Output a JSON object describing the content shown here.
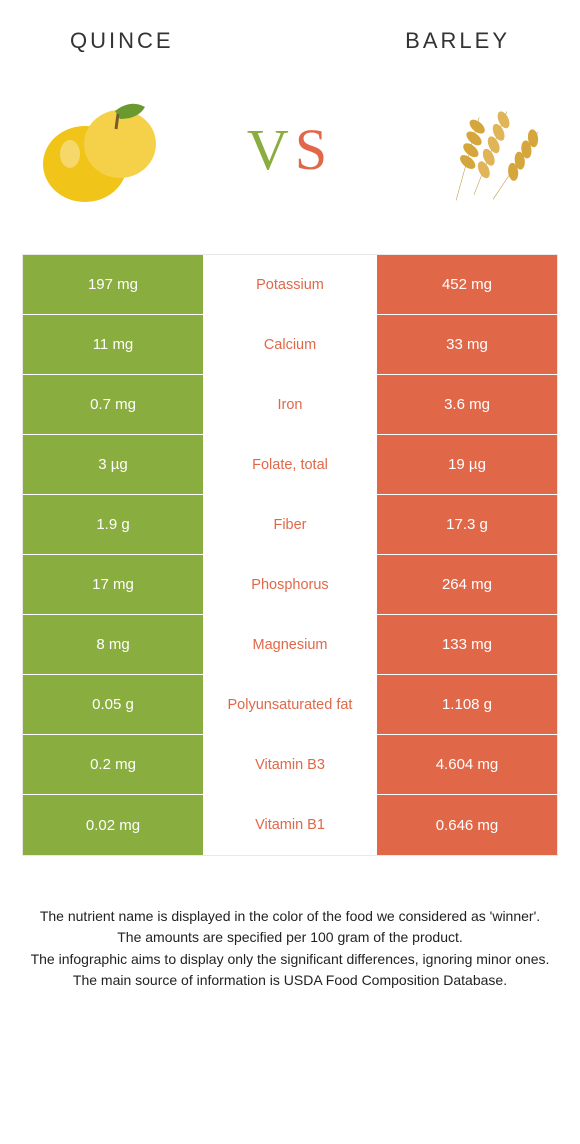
{
  "header": {
    "left": "Quince",
    "right": "Barley"
  },
  "vs": {
    "v": "V",
    "s": "S"
  },
  "colors": {
    "green": "#8aad3f",
    "orange": "#e06849",
    "text": "#222222",
    "bg": "#ffffff",
    "border": "#e8e8e8"
  },
  "table": {
    "rows": [
      {
        "left": "197 mg",
        "mid": "Potassium",
        "right": "452 mg",
        "left_color": "green",
        "right_color": "orange",
        "winner": "orange"
      },
      {
        "left": "11 mg",
        "mid": "Calcium",
        "right": "33 mg",
        "left_color": "green",
        "right_color": "orange",
        "winner": "orange"
      },
      {
        "left": "0.7 mg",
        "mid": "Iron",
        "right": "3.6 mg",
        "left_color": "green",
        "right_color": "orange",
        "winner": "orange"
      },
      {
        "left": "3 µg",
        "mid": "Folate, total",
        "right": "19 µg",
        "left_color": "green",
        "right_color": "orange",
        "winner": "orange"
      },
      {
        "left": "1.9 g",
        "mid": "Fiber",
        "right": "17.3 g",
        "left_color": "green",
        "right_color": "orange",
        "winner": "orange"
      },
      {
        "left": "17 mg",
        "mid": "Phosphorus",
        "right": "264 mg",
        "left_color": "green",
        "right_color": "orange",
        "winner": "orange"
      },
      {
        "left": "8 mg",
        "mid": "Magnesium",
        "right": "133 mg",
        "left_color": "green",
        "right_color": "orange",
        "winner": "orange"
      },
      {
        "left": "0.05 g",
        "mid": "Polyunsaturated fat",
        "right": "1.108 g",
        "left_color": "green",
        "right_color": "orange",
        "winner": "orange"
      },
      {
        "left": "0.2 mg",
        "mid": "Vitamin B3",
        "right": "4.604 mg",
        "left_color": "green",
        "right_color": "orange",
        "winner": "orange"
      },
      {
        "left": "0.02 mg",
        "mid": "Vitamin B1",
        "right": "0.646 mg",
        "left_color": "green",
        "right_color": "orange",
        "winner": "orange"
      }
    ]
  },
  "footnote": {
    "l1": "The nutrient name is displayed in the color of the food we considered as 'winner'.",
    "l2": "The amounts are specified per 100 gram of the product.",
    "l3": "The infographic aims to display only the significant differences, ignoring minor ones.",
    "l4": "The main source of information is USDA Food Composition Database."
  }
}
